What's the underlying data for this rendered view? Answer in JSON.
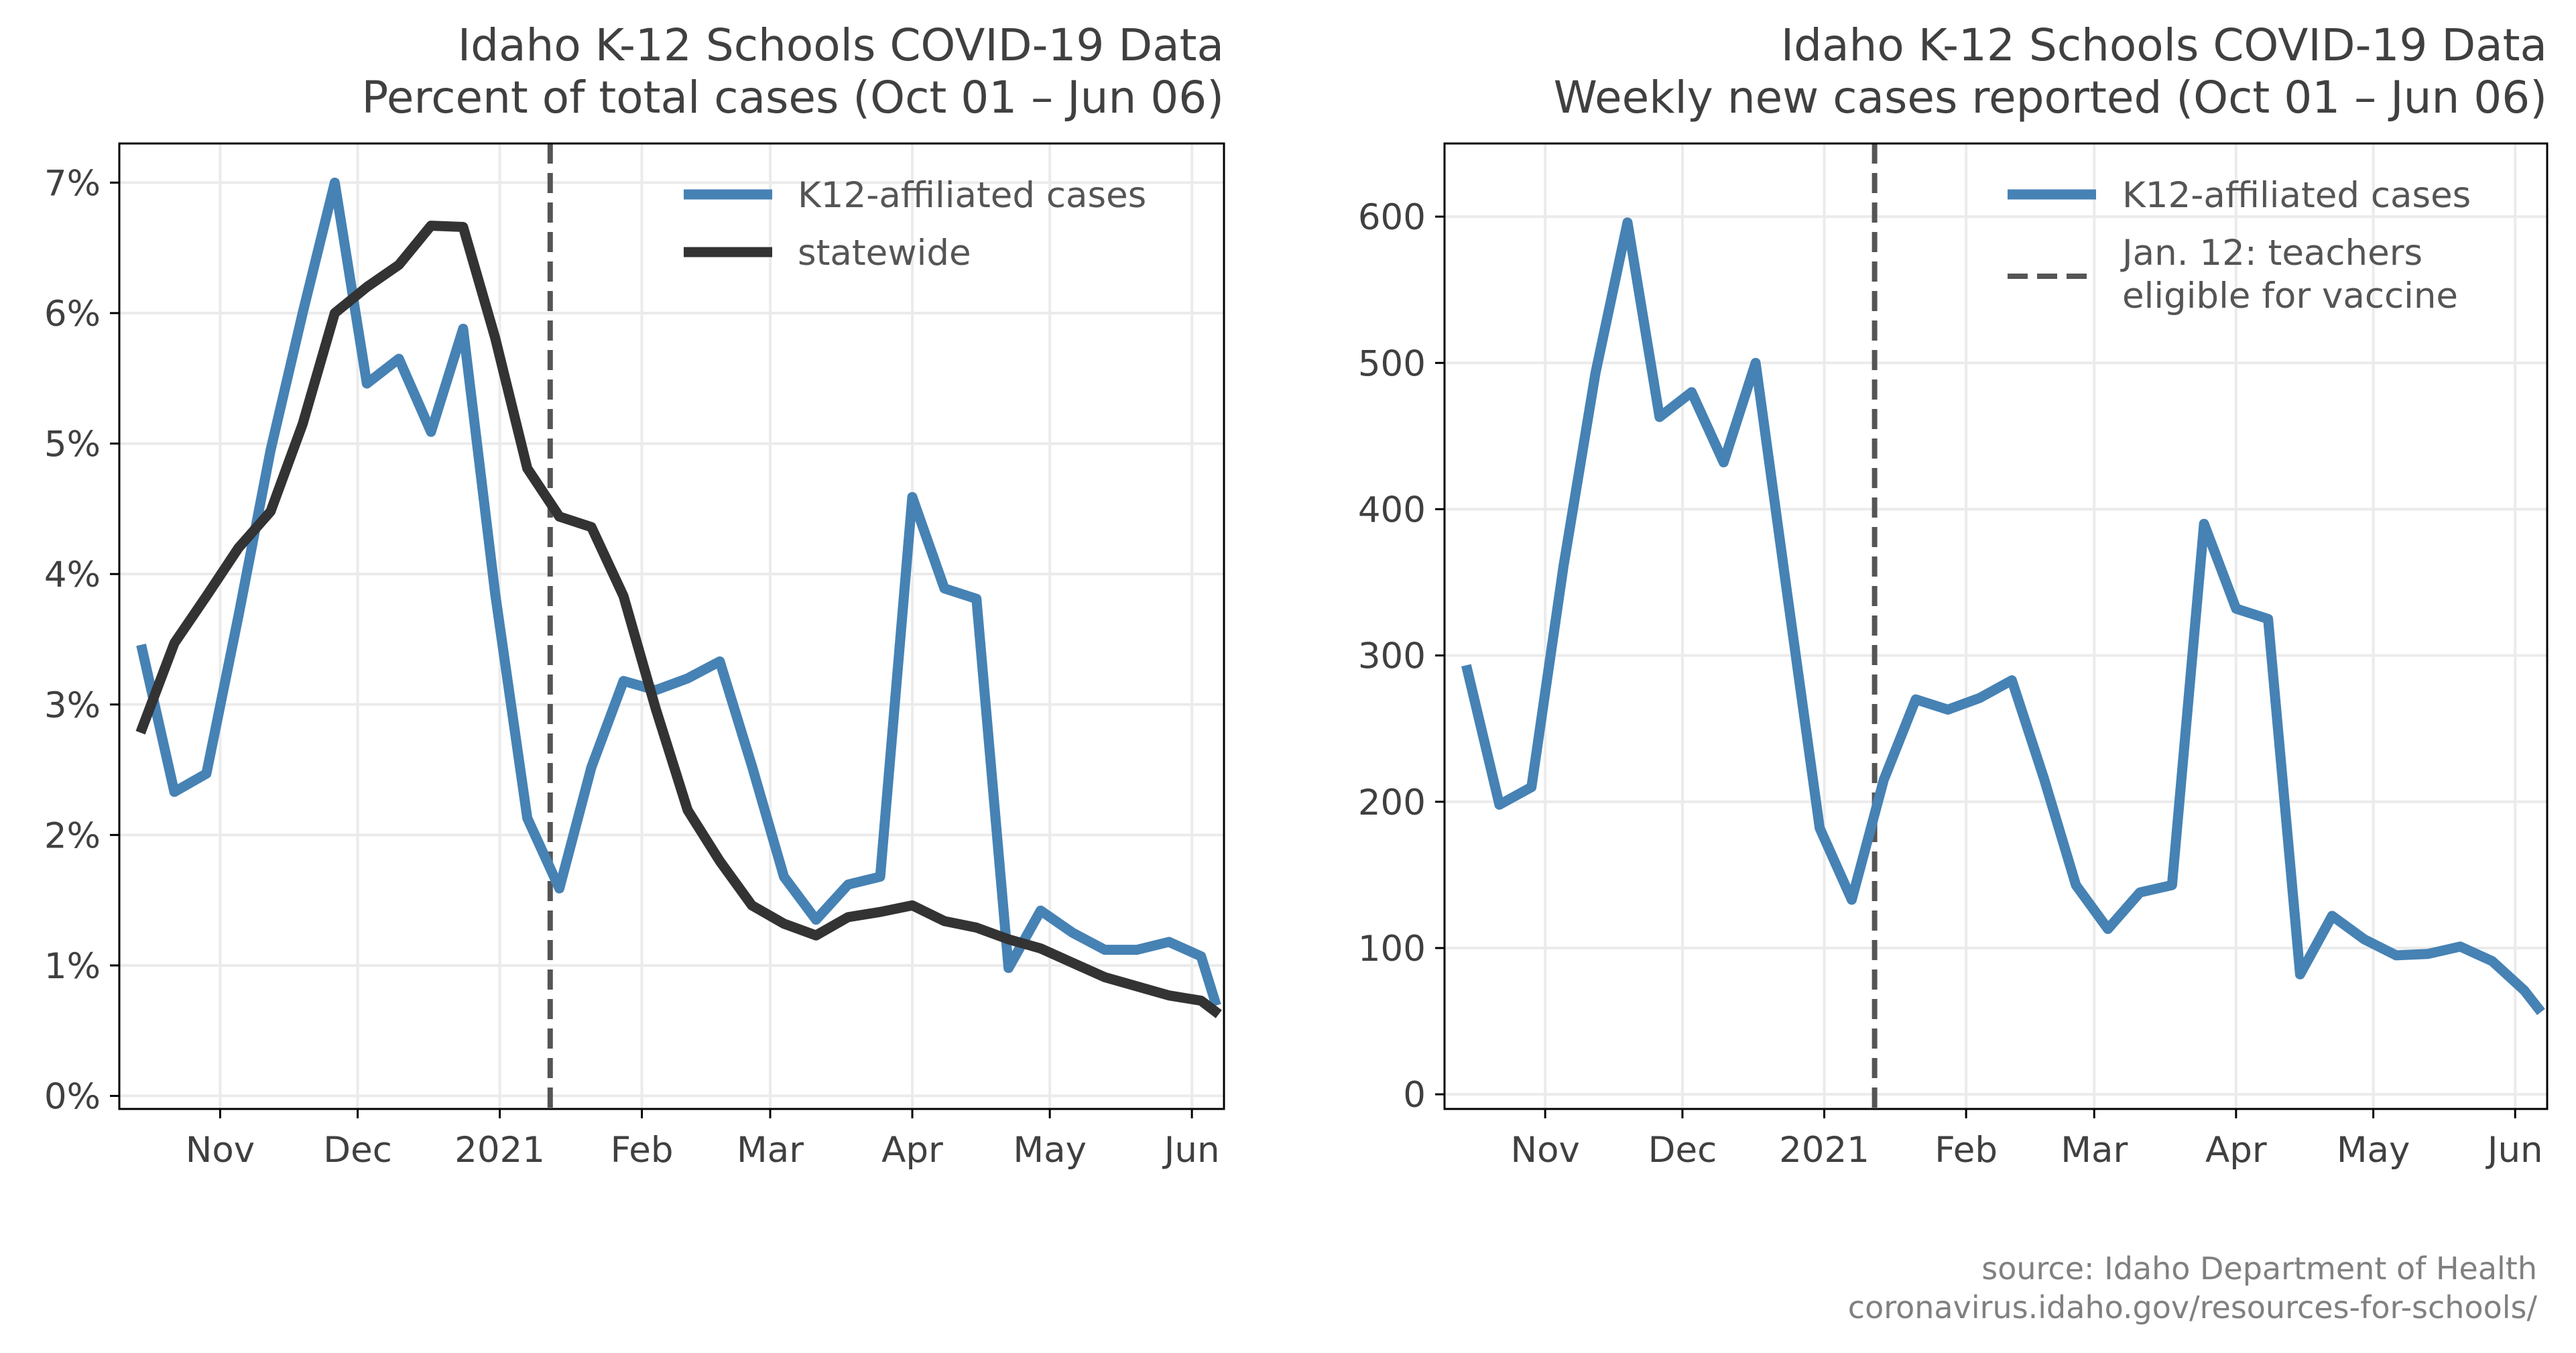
{
  "source": {
    "line1": "source: Idaho Department of Health",
    "line2": "coronavirus.idaho.gov/resources-for-schools/"
  },
  "colors": {
    "k12": "#4682b4",
    "statewide": "#333333",
    "vline": "#555555",
    "grid": "#ebebeb"
  },
  "chart_data": [
    {
      "type": "line",
      "title": "Idaho K-12 Schools COVID-19 Data",
      "subtitle": "Percent of total cases (Oct 01 – Jun 06)",
      "xlabel": "",
      "ylabel": "",
      "x_tick_labels": [
        "Nov",
        "Dec",
        "2021",
        "Feb",
        "Mar",
        "Apr",
        "May",
        "Jun"
      ],
      "x_tick_dates": [
        "2020-11-01",
        "2020-12-01",
        "2021-01-01",
        "2021-02-01",
        "2021-03-01",
        "2021-04-01",
        "2021-05-01",
        "2021-06-01"
      ],
      "xlim": [
        "2020-10-10",
        "2021-06-08"
      ],
      "y_tick_labels": [
        "0%",
        "1%",
        "2%",
        "3%",
        "4%",
        "5%",
        "6%",
        "7%"
      ],
      "y_tick_values": [
        0,
        1,
        2,
        3,
        4,
        5,
        6,
        7
      ],
      "ylim": [
        -0.1,
        7.3
      ],
      "grid": true,
      "legend_position": "top-right",
      "vline_date": "2021-01-12",
      "x": [
        "2020-10-15",
        "2020-10-22",
        "2020-10-29",
        "2020-11-05",
        "2020-11-12",
        "2020-11-19",
        "2020-11-26",
        "2020-12-03",
        "2020-12-10",
        "2020-12-17",
        "2020-12-24",
        "2020-12-31",
        "2021-01-07",
        "2021-01-14",
        "2021-01-21",
        "2021-01-28",
        "2021-02-04",
        "2021-02-11",
        "2021-02-18",
        "2021-02-25",
        "2021-03-04",
        "2021-03-11",
        "2021-03-18",
        "2021-03-25",
        "2021-04-01",
        "2021-04-08",
        "2021-04-15",
        "2021-04-22",
        "2021-04-29",
        "2021-05-06",
        "2021-05-13",
        "2021-05-20",
        "2021-05-27",
        "2021-06-03",
        "2021-06-06"
      ],
      "series": [
        {
          "name": "K12-affiliated cases",
          "color": "#4682b4",
          "values": [
            3.42,
            2.33,
            2.47,
            3.68,
            4.95,
            6.0,
            7.0,
            5.46,
            5.65,
            5.09,
            5.88,
            3.85,
            2.13,
            1.59,
            2.52,
            3.18,
            3.11,
            3.2,
            3.33,
            2.53,
            1.68,
            1.35,
            1.62,
            1.68,
            4.59,
            3.89,
            3.81,
            0.98,
            1.42,
            1.25,
            1.12,
            1.12,
            1.18,
            1.07,
            0.73
          ]
        },
        {
          "name": "statewide",
          "color": "#333333",
          "values": [
            2.82,
            3.47,
            3.83,
            4.2,
            4.48,
            5.15,
            6.0,
            6.2,
            6.37,
            6.67,
            6.66,
            5.81,
            4.81,
            4.44,
            4.36,
            3.83,
            2.97,
            2.19,
            1.8,
            1.46,
            1.32,
            1.23,
            1.37,
            1.41,
            1.46,
            1.34,
            1.29,
            1.2,
            1.13,
            1.02,
            0.91,
            0.84,
            0.77,
            0.73,
            0.65
          ]
        }
      ]
    },
    {
      "type": "line",
      "title": "Idaho K-12 Schools COVID-19 Data",
      "subtitle": "Weekly new cases reported (Oct 01 – Jun 06)",
      "xlabel": "",
      "ylabel": "",
      "x_tick_labels": [
        "Nov",
        "Dec",
        "2021",
        "Feb",
        "Mar",
        "Apr",
        "May",
        "Jun"
      ],
      "x_tick_dates": [
        "2020-11-01",
        "2020-12-01",
        "2021-01-01",
        "2021-02-01",
        "2021-03-01",
        "2021-04-01",
        "2021-05-01",
        "2021-06-01"
      ],
      "xlim": [
        "2020-10-10",
        "2021-06-08"
      ],
      "y_tick_labels": [
        "0",
        "100",
        "200",
        "300",
        "400",
        "500",
        "600"
      ],
      "y_tick_values": [
        0,
        100,
        200,
        300,
        400,
        500,
        600
      ],
      "ylim": [
        -10,
        650
      ],
      "grid": true,
      "legend_position": "top-right",
      "vline_date": "2021-01-12",
      "vline_label": "Jan. 12: teachers\neligible for vaccine",
      "x": [
        "2020-10-15",
        "2020-10-22",
        "2020-10-29",
        "2020-11-05",
        "2020-11-12",
        "2020-11-19",
        "2020-11-26",
        "2020-12-03",
        "2020-12-10",
        "2020-12-17",
        "2020-12-24",
        "2020-12-31",
        "2021-01-07",
        "2021-01-14",
        "2021-01-21",
        "2021-01-28",
        "2021-02-04",
        "2021-02-11",
        "2021-02-18",
        "2021-02-25",
        "2021-03-04",
        "2021-03-11",
        "2021-03-18",
        "2021-03-25",
        "2021-04-01",
        "2021-04-08",
        "2021-04-15",
        "2021-04-22",
        "2021-04-29",
        "2021-05-06",
        "2021-05-13",
        "2021-05-20",
        "2021-05-27",
        "2021-06-03",
        "2021-06-06"
      ],
      "series": [
        {
          "name": "K12-affiliated cases",
          "color": "#4682b4",
          "values": [
            290,
            198,
            210,
            361,
            493,
            596,
            463,
            480,
            432,
            500,
            340,
            182,
            133,
            215,
            270,
            263,
            271,
            283,
            216,
            143,
            113,
            138,
            143,
            390,
            332,
            325,
            82,
            122,
            106,
            95,
            96,
            101,
            91,
            71,
            59
          ]
        }
      ]
    }
  ]
}
